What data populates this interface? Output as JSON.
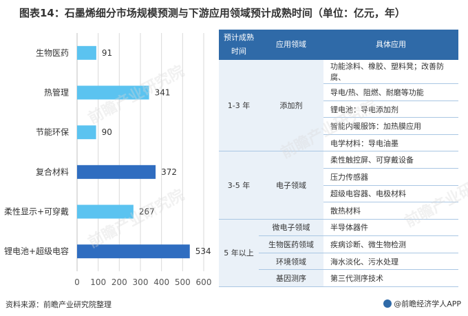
{
  "title": "图表14：石墨烯细分市场规模预测与下游应用领域预计成熟时间（单位：亿元，年）",
  "chart_data": {
    "type": "bar",
    "orientation": "horizontal",
    "categories": [
      "生物医药",
      "热管理",
      "节能环保",
      "复合材料",
      "柔性显示+可穿戴",
      "锂电池+超级电容"
    ],
    "values": [
      91,
      341,
      90,
      372,
      267,
      534
    ],
    "colors": [
      "#5bc3f0",
      "#5bc3f0",
      "#5bc3f0",
      "#2f6dc0",
      "#5bc3f0",
      "#2f6dc0"
    ],
    "xticks": [
      0,
      100,
      200,
      300,
      400,
      500,
      600
    ],
    "xlim": [
      0,
      600
    ],
    "grid": true
  },
  "table": {
    "headers": [
      "预计成熟时间",
      "应用领域",
      "具体应用"
    ],
    "rows": [
      {
        "time": "1-3 年",
        "field": "添加剂",
        "app": "功能涂料、橡胶、塑料凳；改善防腐、"
      },
      {
        "time": "",
        "field": "",
        "app": "导电/热、阻燃、耐磨等功能"
      },
      {
        "time": "",
        "field": "",
        "app": "锂电池：导电添加剂"
      },
      {
        "time": "",
        "field": "",
        "app": "智能内暖服饰：加热膜应用"
      },
      {
        "time": "",
        "field": "",
        "app": "电学材料：导电油墨"
      },
      {
        "time": "3-5 年",
        "field": "电子领域",
        "app": "柔性触控屏、可穿戴设备"
      },
      {
        "time": "",
        "field": "",
        "app": "压力传感器"
      },
      {
        "time": "",
        "field": "",
        "app": "超级电容器、电极材料"
      },
      {
        "time": "",
        "field": "",
        "app": "散热材料"
      },
      {
        "time": "5 年以上",
        "field": "微电子领域",
        "app": "半导体器件"
      },
      {
        "time": "",
        "field": "生物医药领域",
        "app": "疾病诊断、微生物检测"
      },
      {
        "time": "",
        "field": "环境领域",
        "app": "海水淡化、污水处理"
      },
      {
        "time": "",
        "field": "基因测序",
        "app": "第三代测序技术"
      }
    ]
  },
  "source": "资料来源：前瞻产业研究院整理",
  "brand": "@前瞻经济学人APP",
  "watermark": "前瞻产业研究院"
}
